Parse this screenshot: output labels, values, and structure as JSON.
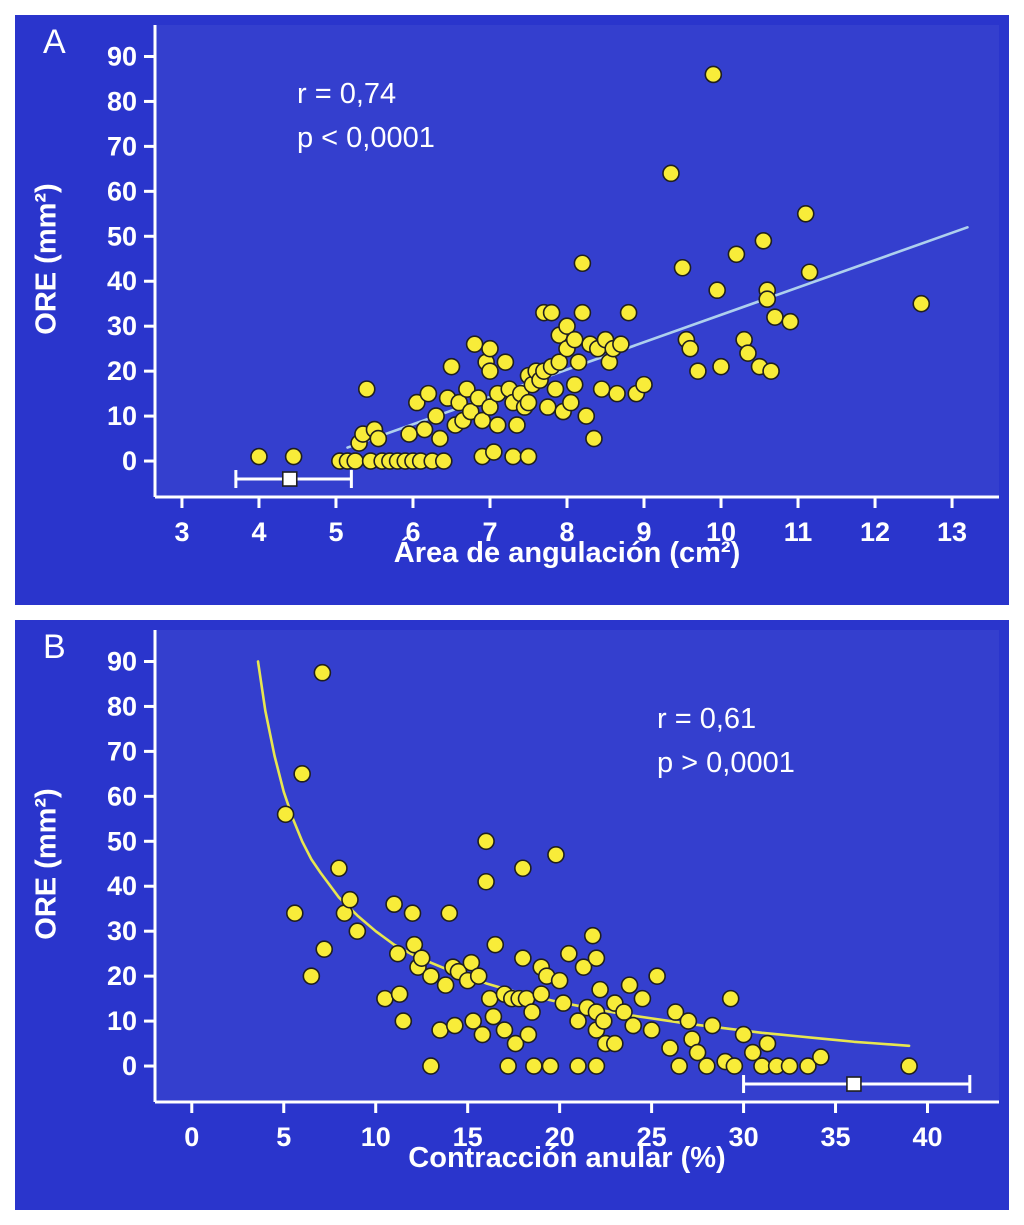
{
  "figure": {
    "background": "#ffffff",
    "panel_background": "#2a35cc",
    "text_color": "#ffffff"
  },
  "chart_data": [
    {
      "type": "scatter",
      "panel_label": "A",
      "xlabel": "Área de angulación (cm²)",
      "ylabel": "ORE (mm²)",
      "annotation": {
        "line1": "r = 0,74",
        "line2": "p < 0,0001"
      },
      "xlim": [
        2.65,
        13.35
      ],
      "ylim": [
        -8,
        93
      ],
      "xticks": [
        3,
        4,
        5,
        6,
        7,
        8,
        9,
        10,
        11,
        12,
        13
      ],
      "yticks": [
        0,
        10,
        20,
        30,
        40,
        50,
        60,
        70,
        80,
        90
      ],
      "grid": false,
      "colors": {
        "point_fill": "#f8ec39",
        "point_stroke": "#1f1f1f",
        "axis": "#ffffff",
        "background": "#2a35cc"
      },
      "trend": {
        "type": "line",
        "color": "#aed0ee",
        "points": [
          [
            5.15,
            3
          ],
          [
            13.2,
            52
          ]
        ]
      },
      "error_bar": {
        "y": -4,
        "x1": 3.7,
        "x2": 5.2,
        "marker_x": 4.4
      },
      "points": [
        [
          4.0,
          1
        ],
        [
          4.45,
          1
        ],
        [
          5.05,
          0
        ],
        [
          5.15,
          0
        ],
        [
          5.25,
          0
        ],
        [
          5.3,
          4
        ],
        [
          5.35,
          6
        ],
        [
          5.4,
          16
        ],
        [
          5.45,
          0
        ],
        [
          5.5,
          7
        ],
        [
          5.55,
          5
        ],
        [
          5.6,
          0
        ],
        [
          5.7,
          0
        ],
        [
          5.8,
          0
        ],
        [
          5.9,
          0
        ],
        [
          5.95,
          6
        ],
        [
          6.0,
          0
        ],
        [
          6.05,
          13
        ],
        [
          6.1,
          0
        ],
        [
          6.15,
          7
        ],
        [
          6.2,
          15
        ],
        [
          6.25,
          0
        ],
        [
          6.3,
          10
        ],
        [
          6.35,
          5
        ],
        [
          6.4,
          0
        ],
        [
          6.45,
          14
        ],
        [
          6.5,
          21
        ],
        [
          6.55,
          8
        ],
        [
          6.6,
          13
        ],
        [
          6.65,
          9
        ],
        [
          6.7,
          16
        ],
        [
          6.75,
          11
        ],
        [
          6.8,
          26
        ],
        [
          6.85,
          14
        ],
        [
          6.9,
          1
        ],
        [
          6.9,
          9
        ],
        [
          6.95,
          22
        ],
        [
          7.0,
          25
        ],
        [
          7.0,
          20
        ],
        [
          7.0,
          12
        ],
        [
          7.05,
          2
        ],
        [
          7.1,
          15
        ],
        [
          7.1,
          8
        ],
        [
          7.2,
          22
        ],
        [
          7.25,
          16
        ],
        [
          7.3,
          13
        ],
        [
          7.3,
          1
        ],
        [
          7.35,
          8
        ],
        [
          7.4,
          15
        ],
        [
          7.45,
          12
        ],
        [
          7.5,
          19
        ],
        [
          7.5,
          13
        ],
        [
          7.5,
          1
        ],
        [
          7.55,
          17
        ],
        [
          7.6,
          20
        ],
        [
          7.65,
          18
        ],
        [
          7.7,
          33
        ],
        [
          7.7,
          20
        ],
        [
          7.75,
          12
        ],
        [
          7.8,
          33
        ],
        [
          7.8,
          21
        ],
        [
          7.85,
          16
        ],
        [
          7.9,
          28
        ],
        [
          7.9,
          22
        ],
        [
          7.95,
          11
        ],
        [
          8.0,
          30
        ],
        [
          8.0,
          25
        ],
        [
          8.05,
          13
        ],
        [
          8.1,
          27
        ],
        [
          8.1,
          17
        ],
        [
          8.15,
          22
        ],
        [
          8.2,
          44
        ],
        [
          8.2,
          33
        ],
        [
          8.25,
          10
        ],
        [
          8.3,
          26
        ],
        [
          8.35,
          5
        ],
        [
          8.4,
          25
        ],
        [
          8.45,
          16
        ],
        [
          8.5,
          27
        ],
        [
          8.55,
          22
        ],
        [
          8.6,
          25
        ],
        [
          8.65,
          15
        ],
        [
          8.7,
          26
        ],
        [
          8.8,
          33
        ],
        [
          8.9,
          15
        ],
        [
          9.0,
          17
        ],
        [
          9.35,
          64
        ],
        [
          9.5,
          43
        ],
        [
          9.55,
          27
        ],
        [
          9.6,
          25
        ],
        [
          9.7,
          20
        ],
        [
          9.9,
          86
        ],
        [
          9.95,
          38
        ],
        [
          10.0,
          21
        ],
        [
          10.2,
          46
        ],
        [
          10.3,
          27
        ],
        [
          10.35,
          24
        ],
        [
          10.5,
          21
        ],
        [
          10.55,
          49
        ],
        [
          10.6,
          38
        ],
        [
          10.6,
          36
        ],
        [
          10.65,
          20
        ],
        [
          10.7,
          32
        ],
        [
          10.9,
          31
        ],
        [
          11.1,
          55
        ],
        [
          11.15,
          42
        ],
        [
          12.6,
          35
        ]
      ]
    },
    {
      "type": "scatter",
      "panel_label": "B",
      "xlabel": "Contracción anular (%)",
      "ylabel": "ORE (mm²)",
      "annotation": {
        "line1": "r = 0,61",
        "line2": "p > 0,0001"
      },
      "xlim": [
        -2,
        42.8
      ],
      "ylim": [
        -8,
        93
      ],
      "xticks": [
        0,
        5,
        10,
        15,
        20,
        25,
        30,
        35,
        40
      ],
      "yticks": [
        0,
        10,
        20,
        30,
        40,
        50,
        60,
        70,
        80,
        90
      ],
      "grid": false,
      "colors": {
        "point_fill": "#f8ec39",
        "point_stroke": "#1f1f1f",
        "axis": "#ffffff",
        "background": "#2a35cc"
      },
      "trend": {
        "type": "curve",
        "color": "#e8e64f",
        "points": [
          [
            3.6,
            90
          ],
          [
            4,
            79
          ],
          [
            4.5,
            69
          ],
          [
            5,
            61
          ],
          [
            5.5,
            55
          ],
          [
            6,
            50
          ],
          [
            6.5,
            46
          ],
          [
            7,
            43
          ],
          [
            8,
            37.5
          ],
          [
            9,
            33.5
          ],
          [
            10,
            30
          ],
          [
            11,
            27
          ],
          [
            12,
            24.8
          ],
          [
            13,
            23
          ],
          [
            14,
            21.3
          ],
          [
            15,
            19.8
          ],
          [
            16,
            18.4
          ],
          [
            17,
            17.2
          ],
          [
            18,
            16.1
          ],
          [
            19,
            15.1
          ],
          [
            20,
            14.2
          ],
          [
            21,
            13.4
          ],
          [
            22,
            12.6
          ],
          [
            23,
            11.9
          ],
          [
            24,
            11.2
          ],
          [
            25,
            10.6
          ],
          [
            26,
            10
          ],
          [
            27,
            9.4
          ],
          [
            28,
            8.9
          ],
          [
            29,
            8.4
          ],
          [
            30,
            7.9
          ],
          [
            31,
            7.4
          ],
          [
            32,
            7
          ],
          [
            33,
            6.6
          ],
          [
            34,
            6.2
          ],
          [
            35,
            5.8
          ],
          [
            36,
            5.4
          ],
          [
            37,
            5.1
          ],
          [
            38,
            4.8
          ],
          [
            39,
            4.5
          ]
        ]
      },
      "error_bar": {
        "y": -4,
        "x1": 30,
        "x2": 42.3,
        "marker_x": 36
      },
      "points": [
        [
          5.1,
          56
        ],
        [
          5.6,
          34
        ],
        [
          6.0,
          65
        ],
        [
          6.5,
          20
        ],
        [
          7.1,
          87.5
        ],
        [
          7.2,
          26
        ],
        [
          8.0,
          44
        ],
        [
          8.3,
          34
        ],
        [
          8.6,
          37
        ],
        [
          9.0,
          30
        ],
        [
          10.5,
          15
        ],
        [
          11.0,
          36
        ],
        [
          11.2,
          25
        ],
        [
          11.3,
          16
        ],
        [
          11.5,
          10
        ],
        [
          12.0,
          34
        ],
        [
          12.1,
          27
        ],
        [
          12.3,
          22
        ],
        [
          12.5,
          24
        ],
        [
          13.0,
          20
        ],
        [
          13.0,
          0
        ],
        [
          13.5,
          8
        ],
        [
          13.8,
          18
        ],
        [
          14.0,
          34
        ],
        [
          14.2,
          22
        ],
        [
          14.3,
          9
        ],
        [
          14.5,
          21
        ],
        [
          15.0,
          19
        ],
        [
          15.2,
          23
        ],
        [
          15.3,
          10
        ],
        [
          15.6,
          20
        ],
        [
          15.8,
          7
        ],
        [
          16.0,
          50
        ],
        [
          16.0,
          41
        ],
        [
          16.2,
          15
        ],
        [
          16.4,
          11
        ],
        [
          16.5,
          27
        ],
        [
          17.0,
          16
        ],
        [
          17.0,
          8
        ],
        [
          17.2,
          0
        ],
        [
          17.4,
          15
        ],
        [
          17.6,
          5
        ],
        [
          17.8,
          15
        ],
        [
          18.0,
          44
        ],
        [
          18.0,
          24
        ],
        [
          18.2,
          15
        ],
        [
          18.3,
          7
        ],
        [
          18.5,
          12
        ],
        [
          18.6,
          0
        ],
        [
          19.0,
          22
        ],
        [
          19.0,
          16
        ],
        [
          19.3,
          20
        ],
        [
          19.5,
          0
        ],
        [
          19.8,
          47
        ],
        [
          20.0,
          19
        ],
        [
          20.2,
          14
        ],
        [
          20.5,
          25
        ],
        [
          21.0,
          10
        ],
        [
          21.0,
          0
        ],
        [
          21.3,
          22
        ],
        [
          21.5,
          13
        ],
        [
          21.8,
          29
        ],
        [
          22.0,
          24
        ],
        [
          22.0,
          12
        ],
        [
          22.0,
          8
        ],
        [
          22.0,
          0
        ],
        [
          22.2,
          17
        ],
        [
          22.4,
          10
        ],
        [
          22.5,
          5
        ],
        [
          23.0,
          14
        ],
        [
          23.0,
          5
        ],
        [
          23.5,
          12
        ],
        [
          23.8,
          18
        ],
        [
          24.0,
          9
        ],
        [
          24.5,
          15
        ],
        [
          25.0,
          8
        ],
        [
          25.3,
          20
        ],
        [
          26.0,
          4
        ],
        [
          26.3,
          12
        ],
        [
          26.5,
          0
        ],
        [
          27.0,
          10
        ],
        [
          27.2,
          6
        ],
        [
          27.5,
          3
        ],
        [
          28.0,
          0
        ],
        [
          28.3,
          9
        ],
        [
          29.0,
          1
        ],
        [
          29.3,
          15
        ],
        [
          29.5,
          0
        ],
        [
          30.0,
          7
        ],
        [
          30.5,
          3
        ],
        [
          31.0,
          0
        ],
        [
          31.3,
          5
        ],
        [
          31.8,
          0
        ],
        [
          32.5,
          0
        ],
        [
          33.5,
          0
        ],
        [
          34.2,
          2
        ],
        [
          39.0,
          0
        ]
      ]
    }
  ]
}
